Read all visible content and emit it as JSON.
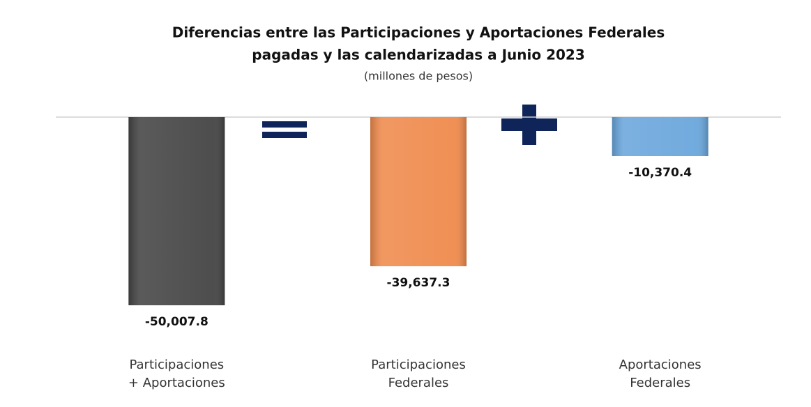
{
  "chart_data": {
    "type": "bar",
    "title": [
      "Diferencias entre las Participaciones y Aportaciones Federales",
      "pagadas y las calendarizadas a Junio 2023"
    ],
    "subtitle": "(millones de pesos)",
    "categories": [
      [
        "Participaciones",
        "+ Aportaciones"
      ],
      [
        "Participaciones",
        "Federales"
      ],
      [
        "Aportaciones",
        "Federales"
      ]
    ],
    "values": [
      -50007.8,
      -39637.3,
      -10370.4
    ],
    "value_labels": [
      "-50,007.8",
      "-39,637.3",
      "-10,370.4"
    ],
    "colors": [
      "#444444",
      "#ef8a4c",
      "#6aa6dc"
    ],
    "ylim": [
      -60000,
      0
    ]
  }
}
